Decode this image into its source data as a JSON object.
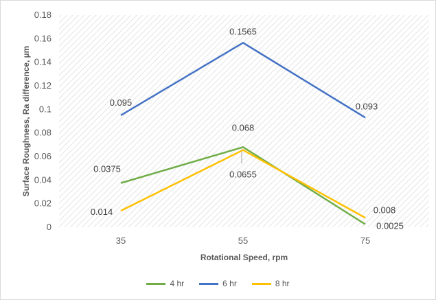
{
  "chart_data": {
    "type": "line",
    "xlabel": "Rotational Speed, rpm",
    "ylabel": "Surface Roughness, Ra difference, µm",
    "categories": [
      "35",
      "55",
      "75"
    ],
    "ylim": [
      0,
      0.18
    ],
    "yticks": [
      "0",
      "0.02",
      "0.04",
      "0.06",
      "0.08",
      "0.1",
      "0.12",
      "0.14",
      "0.16",
      "0.18"
    ],
    "grid": false,
    "legend_position": "bottom",
    "series": [
      {
        "name": "4 hr",
        "color": "#70ad47",
        "values": [
          0.0375,
          0.068,
          0.0025
        ],
        "labels": [
          "0.0375",
          "0.068",
          "0.0025"
        ]
      },
      {
        "name": "6 hr",
        "color": "#4472c4",
        "values": [
          0.095,
          0.1565,
          0.093
        ],
        "labels": [
          "0.095",
          "0.1565",
          "0.093"
        ]
      },
      {
        "name": "8 hr",
        "color": "#ffc000",
        "values": [
          0.014,
          0.0655,
          0.008
        ],
        "labels": [
          "0.014",
          "0.0655",
          "0.008"
        ]
      }
    ]
  }
}
